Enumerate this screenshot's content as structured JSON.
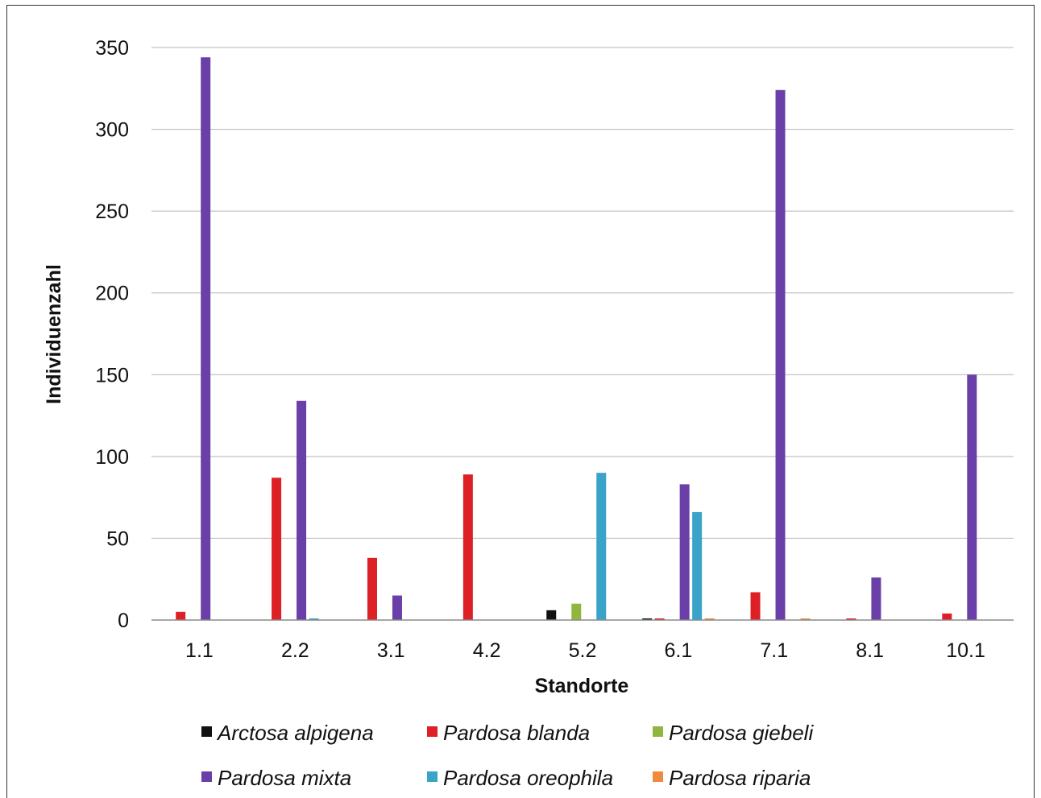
{
  "chart_data": {
    "type": "bar",
    "xlabel": "Standorte",
    "ylabel": "Individuenzahl",
    "ylim": [
      0,
      350
    ],
    "yticks": [
      0,
      50,
      100,
      150,
      200,
      250,
      300,
      350
    ],
    "grid": true,
    "legend_position": "bottom",
    "categories": [
      "1.1",
      "2.2",
      "3.1",
      "4.2",
      "5.2",
      "6.1",
      "7.1",
      "8.1",
      "10.1"
    ],
    "series": [
      {
        "name": "Arctosa alpigena",
        "color": "#111111",
        "values": [
          0,
          0,
          0,
          0,
          6,
          1,
          0,
          0,
          0
        ]
      },
      {
        "name": "Pardosa blanda",
        "color": "#dd1f26",
        "values": [
          5,
          87,
          38,
          89,
          0,
          1,
          17,
          1,
          4
        ]
      },
      {
        "name": "Pardosa giebeli",
        "color": "#8fb63e",
        "values": [
          0,
          0,
          0,
          0,
          10,
          0,
          0,
          0,
          0
        ]
      },
      {
        "name": "Pardosa mixta",
        "color": "#6a3fa8",
        "values": [
          344,
          134,
          15,
          0,
          0,
          83,
          324,
          26,
          150
        ]
      },
      {
        "name": "Pardosa oreophila",
        "color": "#3aa3c8",
        "values": [
          0,
          1,
          0,
          0,
          90,
          66,
          0,
          0,
          0
        ]
      },
      {
        "name": "Pardosa riparia",
        "color": "#f08a3c",
        "values": [
          0,
          0,
          0,
          0,
          0,
          1,
          1,
          0,
          0
        ]
      }
    ]
  }
}
